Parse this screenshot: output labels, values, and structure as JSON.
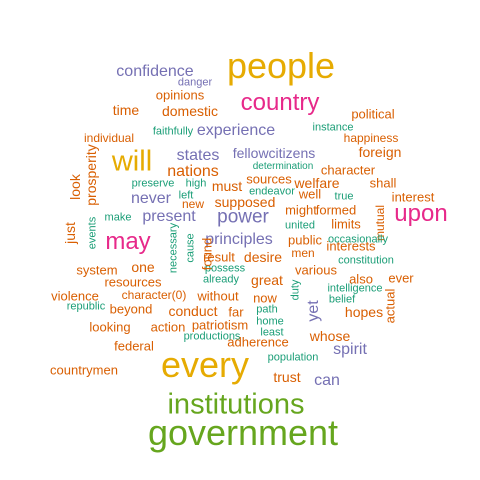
{
  "palette": {
    "orange": "#d95f02",
    "purple": "#7570b3",
    "magenta": "#e7298a",
    "green": "#66a61e",
    "gold": "#e6ab02",
    "teal": "#1b9e77",
    "brown": "#a6761d"
  },
  "words": [
    {
      "text": "people",
      "size": 60,
      "color": "gold"
    },
    {
      "text": "every",
      "size": 60,
      "color": "gold"
    },
    {
      "text": "government",
      "size": 60,
      "color": "green"
    },
    {
      "text": "institutions",
      "size": 50,
      "color": "green"
    },
    {
      "text": "country",
      "size": 40,
      "color": "magenta"
    },
    {
      "text": "will",
      "size": 50,
      "color": "gold"
    },
    {
      "text": "upon",
      "size": 40,
      "color": "magenta"
    },
    {
      "text": "may",
      "size": 40,
      "color": "magenta"
    },
    {
      "text": "confidence",
      "size": 25,
      "color": "purple"
    },
    {
      "text": "danger",
      "size": 14,
      "color": "purple"
    },
    {
      "text": "opinions",
      "size": 18,
      "color": "orange"
    },
    {
      "text": "domestic",
      "size": 20,
      "color": "orange"
    },
    {
      "text": "time",
      "size": 20,
      "color": "orange"
    },
    {
      "text": "political",
      "size": 18,
      "color": "orange"
    },
    {
      "text": "instance",
      "size": 14,
      "color": "teal"
    },
    {
      "text": "happiness",
      "size": 16,
      "color": "orange"
    },
    {
      "text": "individual",
      "size": 16,
      "color": "orange"
    },
    {
      "text": "faithfully",
      "size": 14,
      "color": "teal"
    },
    {
      "text": "experience",
      "size": 25,
      "color": "purple"
    },
    {
      "text": "states",
      "size": 25,
      "color": "purple"
    },
    {
      "text": "fellowcitizens",
      "size": 20,
      "color": "purple"
    },
    {
      "text": "foreign",
      "size": 20,
      "color": "orange"
    },
    {
      "text": "character",
      "size": 18,
      "color": "orange"
    },
    {
      "text": "determination",
      "size": 12,
      "color": "teal"
    },
    {
      "text": "nations",
      "size": 25,
      "color": "orange"
    },
    {
      "text": "sources",
      "size": 18,
      "color": "orange"
    },
    {
      "text": "welfare",
      "size": 20,
      "color": "orange"
    },
    {
      "text": "shall",
      "size": 18,
      "color": "orange"
    },
    {
      "text": "preserve",
      "size": 14,
      "color": "teal"
    },
    {
      "text": "high",
      "size": 14,
      "color": "teal"
    },
    {
      "text": "must",
      "size": 20,
      "color": "orange"
    },
    {
      "text": "endeavor",
      "size": 14,
      "color": "teal"
    },
    {
      "text": "well",
      "size": 18,
      "color": "orange"
    },
    {
      "text": "left",
      "size": 14,
      "color": "teal"
    },
    {
      "text": "new",
      "size": 16,
      "color": "orange"
    },
    {
      "text": "true",
      "size": 14,
      "color": "teal"
    },
    {
      "text": "interest",
      "size": 18,
      "color": "orange"
    },
    {
      "text": "never",
      "size": 25,
      "color": "purple"
    },
    {
      "text": "supposed",
      "size": 20,
      "color": "orange"
    },
    {
      "text": "formed",
      "size": 18,
      "color": "orange"
    },
    {
      "text": "limits",
      "size": 18,
      "color": "orange"
    },
    {
      "text": "mutual",
      "size": 16,
      "color": "orange",
      "vertical": true
    },
    {
      "text": "might",
      "size": 18,
      "color": "orange"
    },
    {
      "text": "present",
      "size": 25,
      "color": "purple"
    },
    {
      "text": "power",
      "size": 30,
      "color": "purple"
    },
    {
      "text": "make",
      "size": 14,
      "color": "teal"
    },
    {
      "text": "united",
      "size": 14,
      "color": "teal"
    },
    {
      "text": "interests",
      "size": 18,
      "color": "orange"
    },
    {
      "text": "occasionally",
      "size": 14,
      "color": "teal"
    },
    {
      "text": "principles",
      "size": 25,
      "color": "purple"
    },
    {
      "text": "public",
      "size": 18,
      "color": "orange"
    },
    {
      "text": "result",
      "size": 18,
      "color": "orange"
    },
    {
      "text": "desire",
      "size": 20,
      "color": "orange"
    },
    {
      "text": "men",
      "size": 16,
      "color": "orange"
    },
    {
      "text": "constitution",
      "size": 14,
      "color": "teal"
    },
    {
      "text": "one",
      "size": 20,
      "color": "orange"
    },
    {
      "text": "system",
      "size": 18,
      "color": "orange"
    },
    {
      "text": "possess",
      "size": 14,
      "color": "teal"
    },
    {
      "text": "great",
      "size": 20,
      "color": "orange"
    },
    {
      "text": "various",
      "size": 18,
      "color": "orange"
    },
    {
      "text": "also",
      "size": 18,
      "color": "orange"
    },
    {
      "text": "ever",
      "size": 18,
      "color": "orange"
    },
    {
      "text": "resources",
      "size": 18,
      "color": "orange"
    },
    {
      "text": "already",
      "size": 14,
      "color": "teal"
    },
    {
      "text": "violence",
      "size": 18,
      "color": "orange"
    },
    {
      "text": "character(0)",
      "size": 16,
      "color": "orange"
    },
    {
      "text": "without",
      "size": 18,
      "color": "orange"
    },
    {
      "text": "now",
      "size": 18,
      "color": "orange"
    },
    {
      "text": "belief",
      "size": 14,
      "color": "teal"
    },
    {
      "text": "republic",
      "size": 14,
      "color": "teal"
    },
    {
      "text": "beyond",
      "size": 18,
      "color": "orange"
    },
    {
      "text": "conduct",
      "size": 20,
      "color": "orange"
    },
    {
      "text": "far",
      "size": 18,
      "color": "orange"
    },
    {
      "text": "path",
      "size": 14,
      "color": "teal"
    },
    {
      "text": "hopes",
      "size": 20,
      "color": "orange"
    },
    {
      "text": "looking",
      "size": 18,
      "color": "orange"
    },
    {
      "text": "action",
      "size": 18,
      "color": "orange"
    },
    {
      "text": "patriotism",
      "size": 18,
      "color": "orange"
    },
    {
      "text": "home",
      "size": 14,
      "color": "teal"
    },
    {
      "text": "whose",
      "size": 20,
      "color": "orange"
    },
    {
      "text": "least",
      "size": 14,
      "color": "teal"
    },
    {
      "text": "productions",
      "size": 14,
      "color": "teal"
    },
    {
      "text": "federal",
      "size": 18,
      "color": "orange"
    },
    {
      "text": "adherence",
      "size": 18,
      "color": "orange"
    },
    {
      "text": "spirit",
      "size": 25,
      "color": "purple"
    },
    {
      "text": "population",
      "size": 14,
      "color": "teal"
    },
    {
      "text": "countrymen",
      "size": 18,
      "color": "orange"
    },
    {
      "text": "trust",
      "size": 20,
      "color": "orange"
    },
    {
      "text": "can",
      "size": 25,
      "color": "purple"
    },
    {
      "text": "intelligence",
      "size": 14,
      "color": "teal"
    },
    {
      "text": "prosperity",
      "size": 20,
      "color": "orange",
      "vertical": true
    },
    {
      "text": "look",
      "size": 20,
      "color": "orange",
      "vertical": true
    },
    {
      "text": "just",
      "size": 20,
      "color": "orange",
      "vertical": true
    },
    {
      "text": "events",
      "size": 14,
      "color": "teal",
      "vertical": true
    },
    {
      "text": "necessary",
      "size": 14,
      "color": "teal",
      "vertical": true
    },
    {
      "text": "cause",
      "size": 14,
      "color": "teal",
      "vertical": true
    },
    {
      "text": "found",
      "size": 18,
      "color": "orange",
      "vertical": true
    },
    {
      "text": "duty",
      "size": 14,
      "color": "teal",
      "vertical": true
    },
    {
      "text": "yet",
      "size": 25,
      "color": "purple",
      "vertical": true
    },
    {
      "text": "actual",
      "size": 18,
      "color": "orange",
      "vertical": true
    }
  ]
}
